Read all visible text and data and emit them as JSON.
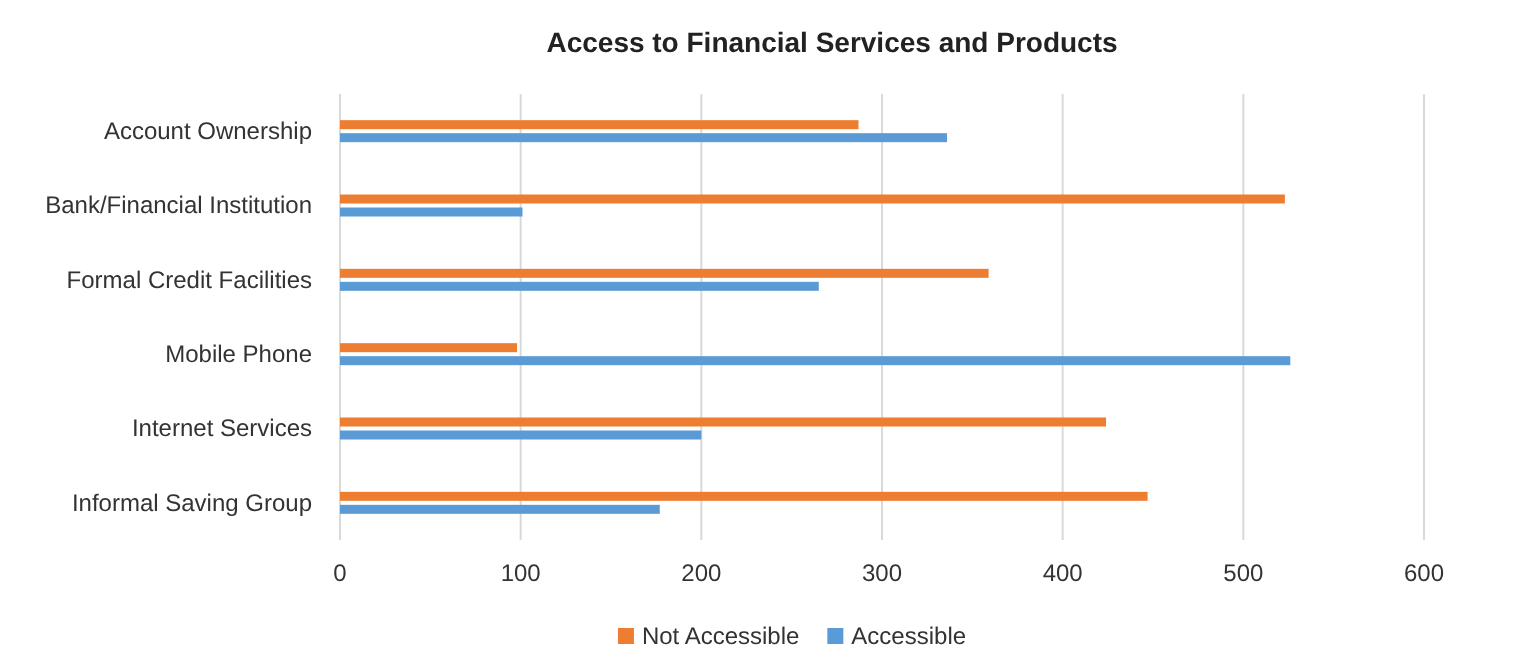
{
  "chart_data": {
    "type": "bar",
    "orientation": "horizontal",
    "title": "Access to Financial Services and Products",
    "categories": [
      "Account Ownership",
      "Bank/Financial Institution",
      "Formal Credit Facilities",
      "Mobile Phone",
      "Internet Services",
      "Informal Saving Group"
    ],
    "series": [
      {
        "name": "Not Accessible",
        "color": "#ed7d31",
        "values": [
          287,
          523,
          359,
          98,
          424,
          447
        ]
      },
      {
        "name": "Accessible",
        "color": "#5b9bd5",
        "values": [
          336,
          101,
          265,
          526,
          200,
          177
        ]
      }
    ],
    "xlim": [
      0,
      600
    ],
    "xticks": [
      0,
      100,
      200,
      300,
      400,
      500,
      600
    ],
    "grid": "x",
    "legend": "bottom"
  }
}
